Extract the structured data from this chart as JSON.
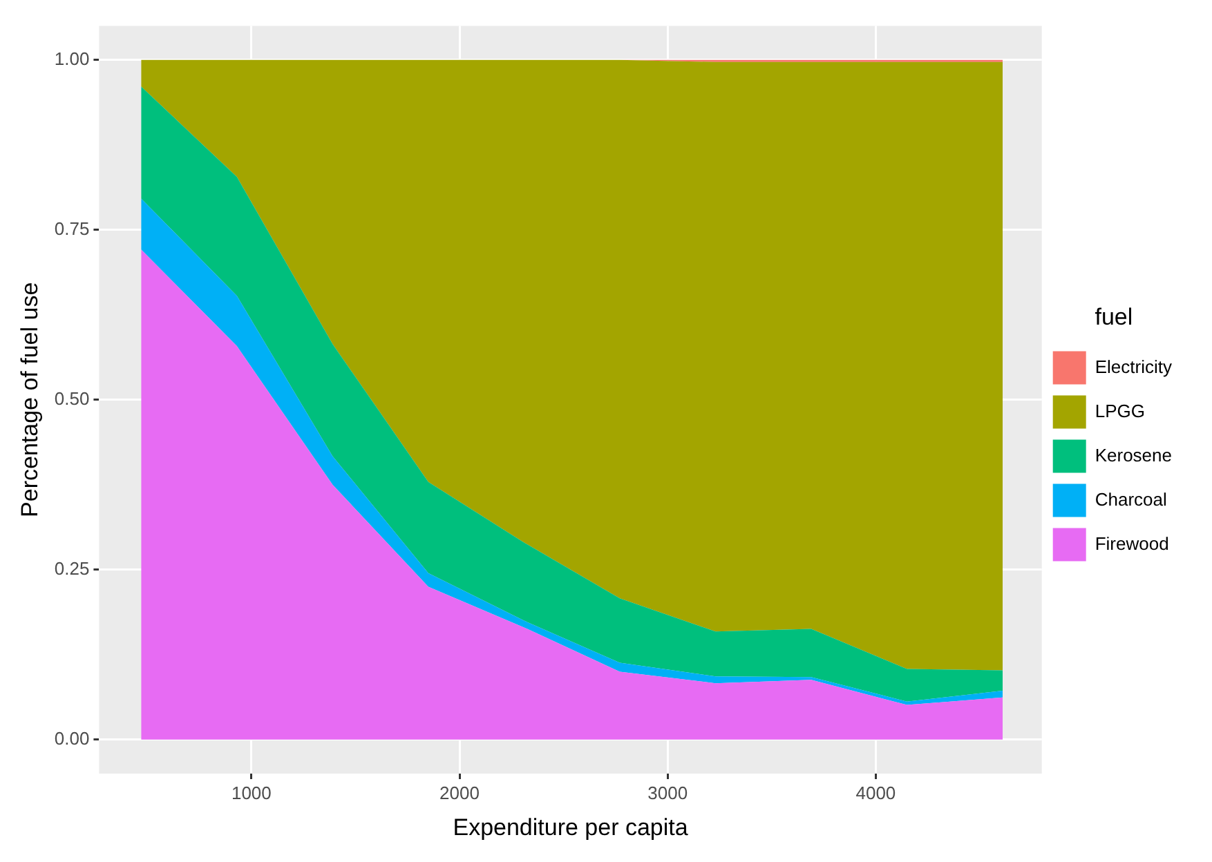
{
  "chart_data": {
    "type": "area",
    "stacked": true,
    "xlabel": "Expenditure per capita",
    "ylabel": "Percentage of fuel use",
    "legend_title": "fuel",
    "legend": "right",
    "grid": true,
    "x": [
      470,
      930,
      1390,
      1850,
      2310,
      2770,
      3230,
      3690,
      4150,
      4610
    ],
    "xlim": [
      268,
      4798
    ],
    "xticks": [
      1000,
      2000,
      3000,
      4000
    ],
    "ylim": [
      -0.05,
      1.05
    ],
    "yticks": [
      {
        "value": 0,
        "label": "0.00"
      },
      {
        "value": 0.25,
        "label": "0.25"
      },
      {
        "value": 0.5,
        "label": "0.50"
      },
      {
        "value": 0.75,
        "label": "0.75"
      },
      {
        "value": 1,
        "label": "1.00"
      }
    ],
    "series": [
      {
        "name": "Firewood",
        "color": "#e76bf3",
        "values": [
          0.721,
          0.579,
          0.375,
          0.225,
          0.165,
          0.1,
          0.083,
          0.088,
          0.051,
          0.062
        ]
      },
      {
        "name": "Charcoal",
        "color": "#00b0f6",
        "values": [
          0.075,
          0.074,
          0.042,
          0.02,
          0.01,
          0.013,
          0.01,
          0.004,
          0.005,
          0.01
        ]
      },
      {
        "name": "Kerosene",
        "color": "#00bf7d",
        "values": [
          0.165,
          0.175,
          0.165,
          0.134,
          0.115,
          0.095,
          0.066,
          0.071,
          0.048,
          0.03
        ]
      },
      {
        "name": "LPGG",
        "color": "#a3a500",
        "values": [
          0.039,
          0.172,
          0.418,
          0.621,
          0.71,
          0.792,
          0.838,
          0.834,
          0.893,
          0.895
        ]
      },
      {
        "name": "Electricity",
        "color": "#f8766d",
        "values": [
          0,
          0,
          0,
          0,
          0,
          0,
          0.003,
          0.003,
          0.003,
          0.003
        ]
      }
    ]
  }
}
